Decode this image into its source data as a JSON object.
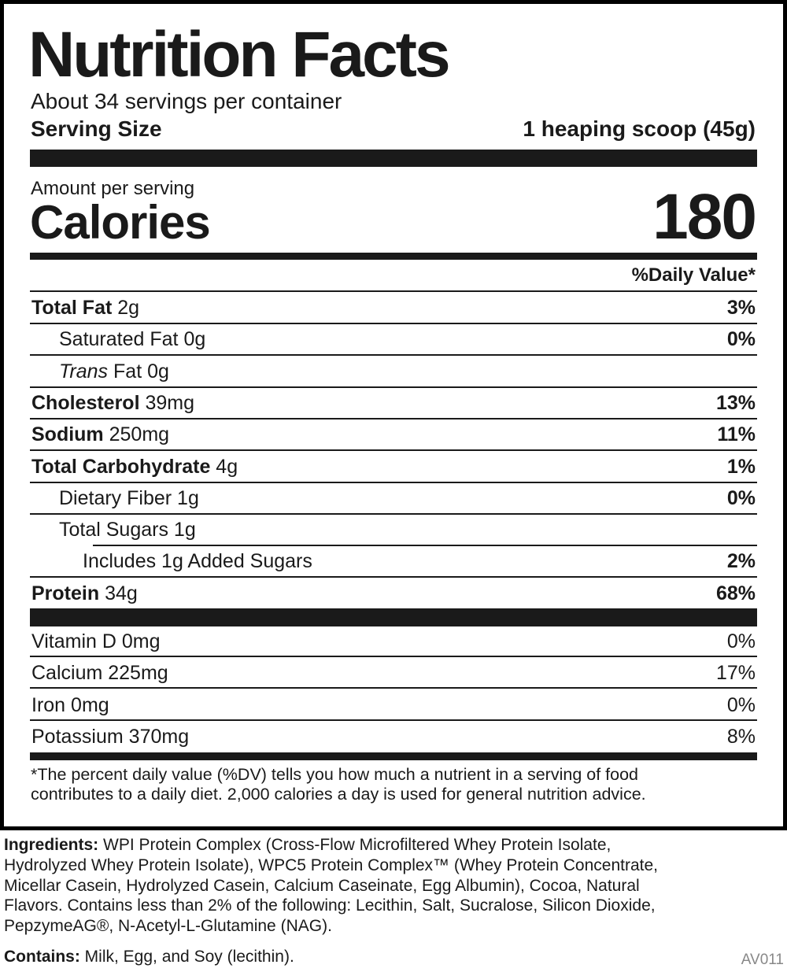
{
  "title": "Nutrition Facts",
  "servings": "About 34 servings per container",
  "serving_size": {
    "label": "Serving Size",
    "value": "1 heaping scoop (45g)"
  },
  "calories": {
    "header": "Amount per serving",
    "label": "Calories",
    "value": 180
  },
  "dv_header": "%Daily Value*",
  "nutrients": [
    {
      "name": "Total Fat",
      "amount": "2g",
      "dv": "3%",
      "sub": [
        {
          "name": "Saturated Fat",
          "amount": "0g",
          "dv": "0%"
        },
        {
          "emphasis": "Trans",
          "name": "Fat",
          "amount": "0g"
        }
      ]
    },
    {
      "name": "Cholesterol",
      "amount": "39mg",
      "dv": "13%"
    },
    {
      "name": "Sodium",
      "amount": "250mg",
      "dv": "11%"
    },
    {
      "name": "Total Carbohydrate",
      "amount": "4g",
      "dv": "1%",
      "sub": [
        {
          "name": "Dietary Fiber",
          "amount": "1g",
          "dv": "0%"
        },
        {
          "name": "Total Sugars",
          "amount": "1g",
          "sub": [
            {
              "name": "Includes 1g Added Sugars",
              "dv": "2%"
            }
          ]
        }
      ]
    },
    {
      "name": "Protein",
      "amount": "34g",
      "dv": "68%"
    }
  ],
  "vitamins": [
    {
      "name": "Vitamin D",
      "amount": "0mg",
      "dv": "0%"
    },
    {
      "name": "Calcium",
      "amount": "225mg",
      "dv": "17%"
    },
    {
      "name": "Iron",
      "amount": "0mg",
      "dv": "0%"
    },
    {
      "name": "Potassium",
      "amount": "370mg",
      "dv": "8%"
    }
  ],
  "footnote": [
    "*The percent daily value (%DV) tells you how much a nutrient in a serving of food",
    "contributes to a daily diet. 2,000 calories a day is used for general nutrition advice."
  ],
  "ingredients": {
    "label": "Ingredients:",
    "lines": [
      "WPI Protein Complex (Cross-Flow Microfiltered Whey Protein Isolate,",
      "Hydrolyzed Whey Protein Isolate), WPC5 Protein Complex™ (Whey Protein Concentrate,",
      "Micellar Casein, Hydrolyzed Casein, Calcium Caseinate, Egg Albumin), Cocoa, Natural",
      "Flavors. Contains less than 2% of the following: Lecithin, Salt, Sucralose, Silicon Dioxide,",
      "PepzymeAG®, N-Acetyl-L-Glutamine (NAG)."
    ]
  },
  "contains": {
    "label": "Contains:",
    "text": "Milk, Egg, and Soy (lecithin)."
  },
  "code": "AV011"
}
